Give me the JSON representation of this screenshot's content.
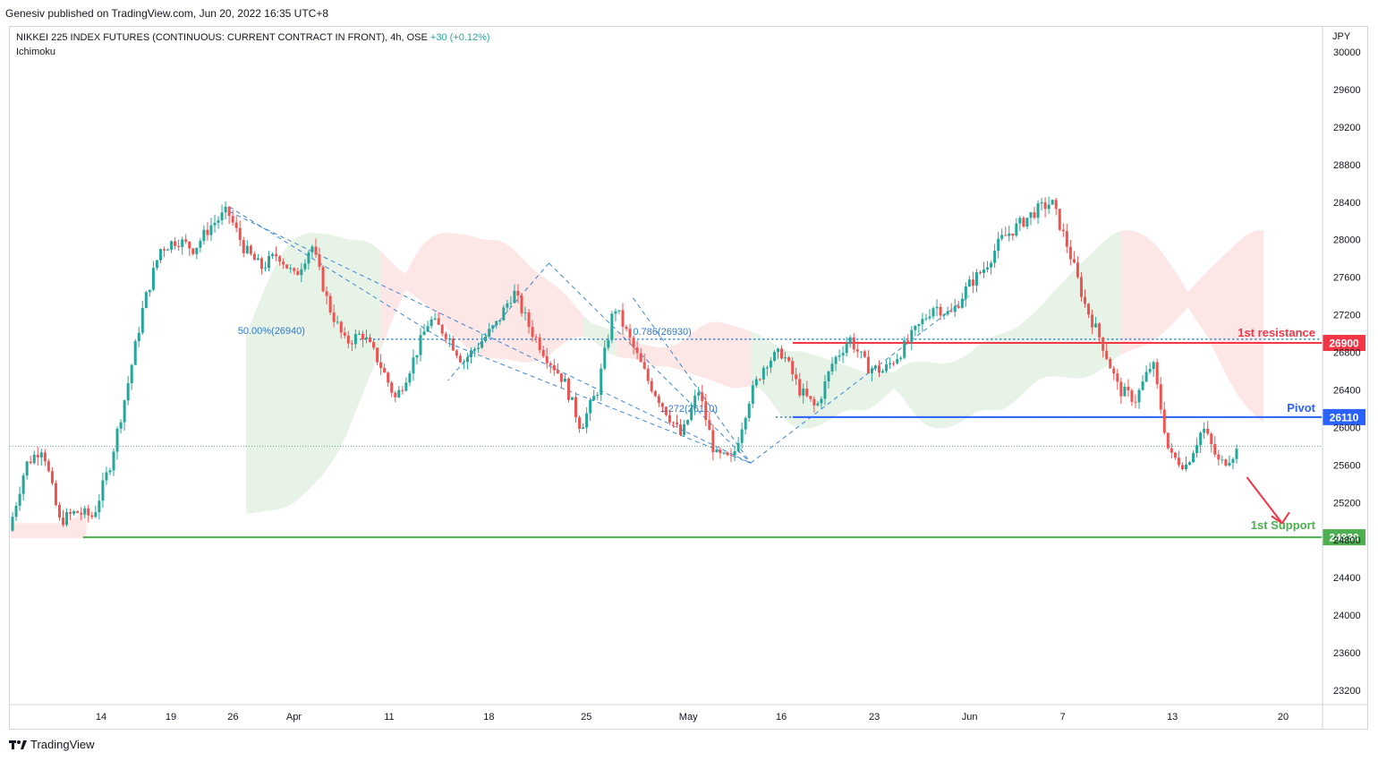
{
  "header": {
    "publisher": "Genesiv published on TradingView.com, Jun 20, 2022 16:35 UTC+8",
    "instrument": "NIKKEI 225 INDEX FUTURES (CONTINUOUS: CURRENT CONTRACT IN FRONT), 4h, OSE",
    "change": "+30 (+0.12%)",
    "indicator": "Ichimoku",
    "currency": "JPY"
  },
  "footer": {
    "brand": "TradingView",
    "logo_icon": "tradingview-logo-icon"
  },
  "colors": {
    "up": "#26a69a",
    "down": "#ef5350",
    "resistance": "#f23645",
    "pivot": "#2962ff",
    "support": "#4caf50",
    "cloud_bull": "#e4f1e4",
    "cloud_bear": "#fde2e2",
    "fib": "#2a7ad2"
  },
  "chart_data": {
    "type": "candlestick",
    "symbol": "NIKKEI 225 INDEX FUTURES",
    "timeframe": "4h",
    "y_axis": {
      "range": [
        23000,
        30300
      ],
      "ticks": [
        30000,
        29600,
        29200,
        28800,
        28400,
        28000,
        27600,
        27200,
        26800,
        26400,
        26000,
        25600,
        25200,
        24800,
        24400,
        24000,
        23600,
        23200
      ]
    },
    "x_axis": {
      "ticks": [
        "14",
        "19",
        "26",
        "Apr",
        "11",
        "18",
        "25",
        "May",
        "16",
        "23",
        "Jun",
        "7",
        "13",
        "20"
      ]
    },
    "price_path": [
      [
        0,
        24900
      ],
      [
        1,
        25600
      ],
      [
        2,
        25800
      ],
      [
        3,
        25000
      ],
      [
        4,
        25100
      ],
      [
        5,
        25050
      ],
      [
        6,
        25600
      ],
      [
        7,
        26400
      ],
      [
        8,
        27300
      ],
      [
        9,
        27900
      ],
      [
        10,
        28000
      ],
      [
        11,
        27900
      ],
      [
        12,
        28150
      ],
      [
        13,
        28300
      ],
      [
        14,
        27900
      ],
      [
        15,
        27700
      ],
      [
        16,
        27850
      ],
      [
        17,
        27600
      ],
      [
        18,
        27950
      ],
      [
        19,
        27300
      ],
      [
        20,
        26900
      ],
      [
        21,
        27000
      ],
      [
        22,
        26700
      ],
      [
        23,
        26300
      ],
      [
        24,
        26700
      ],
      [
        25,
        27150
      ],
      [
        26,
        27000
      ],
      [
        27,
        26700
      ],
      [
        28,
        26900
      ],
      [
        29,
        27100
      ],
      [
        30,
        27450
      ],
      [
        31,
        27050
      ],
      [
        32,
        26750
      ],
      [
        33,
        26500
      ],
      [
        34,
        26000
      ],
      [
        35,
        26400
      ],
      [
        36,
        27300
      ],
      [
        37,
        26900
      ],
      [
        38,
        26500
      ],
      [
        39,
        26200
      ],
      [
        40,
        25900
      ],
      [
        41,
        26400
      ],
      [
        42,
        25700
      ],
      [
        43,
        25650
      ],
      [
        44,
        26300
      ],
      [
        45,
        26700
      ],
      [
        46,
        26800
      ],
      [
        47,
        26400
      ],
      [
        48,
        26200
      ],
      [
        49,
        26700
      ],
      [
        50,
        26950
      ],
      [
        51,
        26650
      ],
      [
        52,
        26600
      ],
      [
        53,
        26800
      ],
      [
        54,
        27050
      ],
      [
        55,
        27300
      ],
      [
        56,
        27200
      ],
      [
        57,
        27500
      ],
      [
        58,
        27700
      ],
      [
        59,
        28000
      ],
      [
        60,
        28150
      ],
      [
        61,
        28300
      ],
      [
        62,
        28400
      ],
      [
        63,
        27900
      ],
      [
        64,
        27300
      ],
      [
        65,
        26900
      ],
      [
        66,
        26400
      ],
      [
        67,
        26300
      ],
      [
        68,
        26700
      ],
      [
        69,
        25700
      ],
      [
        70,
        25600
      ],
      [
        71,
        26000
      ],
      [
        72,
        25600
      ],
      [
        73,
        25750
      ]
    ],
    "current_price": 25800,
    "levels": [
      {
        "name": "1st resistance",
        "value": 26900,
        "color": "#f23645"
      },
      {
        "name": "Pivot",
        "value": 26110,
        "color": "#2962ff"
      },
      {
        "name": "1st Support",
        "value": 24830,
        "color": "#4caf50"
      }
    ],
    "fib_labels": [
      {
        "text": "50.00%(26940)",
        "value": 26940
      },
      {
        "text": "0.786(26930)",
        "value": 26930
      },
      {
        "text": "1.272(26110)",
        "value": 26110
      }
    ]
  }
}
